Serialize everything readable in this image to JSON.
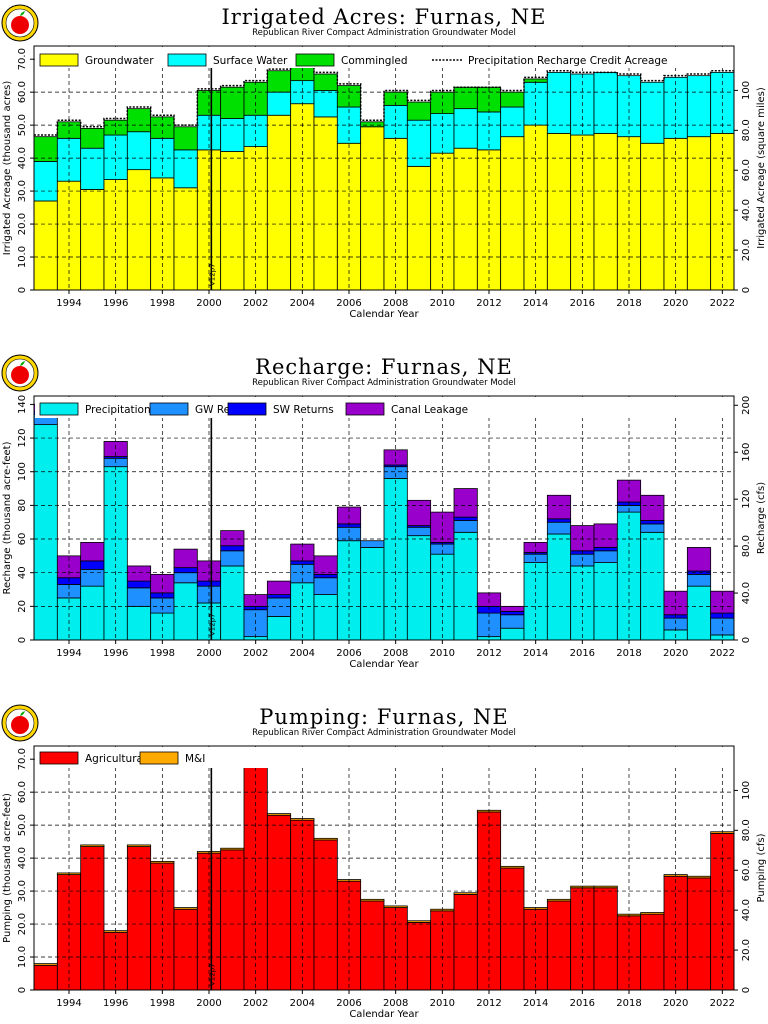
{
  "chart_data": [
    {
      "type": "stacked-bar",
      "title": "Irrigated Acres: Furnas, NE",
      "subtitle": "Republican River Compact Administration Groundwater Model",
      "xlabel": "Calendar Year",
      "ylabel": "Irrigated Acreage (thousand acres)",
      "y2label": "Irrigated Acreage (square miles)",
      "ylim": [
        0,
        74
      ],
      "yticks": [
        "0",
        "10.0",
        "20.0",
        "30.0",
        "40.0",
        "50.0",
        "60.0",
        "70.0"
      ],
      "y2ticks": [
        "0",
        "20.0",
        "40.0",
        "60.0",
        "80.0",
        "100"
      ],
      "xtick_labels": [
        "1994",
        "1996",
        "1998",
        "2000",
        "2002",
        "2004",
        "2006",
        "2008",
        "2010",
        "2012",
        "2014",
        "2016",
        "2018",
        "2020",
        "2022"
      ],
      "vline": {
        "x": 2000.6,
        "label": "V12p7"
      },
      "legend_position": "top",
      "grid": true,
      "years": [
        1993,
        1994,
        1995,
        1996,
        1997,
        1998,
        1999,
        2000,
        2001,
        2002,
        2003,
        2004,
        2005,
        2006,
        2007,
        2008,
        2009,
        2010,
        2011,
        2012,
        2013,
        2014,
        2015,
        2016,
        2017,
        2018,
        2019,
        2020,
        2021,
        2022
      ],
      "series": [
        {
          "name": "Groundwater",
          "color": "#ffff00",
          "values": [
            27.0,
            33.0,
            30.5,
            33.5,
            36.5,
            34.0,
            31.0,
            42.5,
            42.0,
            43.5,
            53.0,
            56.5,
            52.5,
            44.5,
            49.5,
            46.0,
            37.5,
            41.5,
            43.0,
            42.5,
            46.5,
            50.0,
            47.5,
            47.0,
            47.5,
            46.5,
            44.5,
            46.0,
            46.5,
            47.5
          ]
        },
        {
          "name": "Surface Water",
          "color": "#00ffff",
          "values": [
            12.0,
            13.0,
            12.5,
            13.5,
            11.5,
            12.0,
            11.5,
            10.5,
            10.0,
            9.5,
            7.0,
            7.0,
            8.0,
            11.0,
            0.0,
            10.0,
            14.0,
            12.0,
            12.0,
            11.5,
            9.0,
            13.0,
            18.5,
            18.5,
            18.5,
            18.5,
            18.5,
            18.5,
            18.5,
            18.5
          ]
        },
        {
          "name": "Commingled",
          "color": "#00e000",
          "values": [
            7.5,
            5.0,
            6.0,
            4.5,
            7.0,
            6.5,
            7.0,
            7.5,
            9.5,
            10.0,
            6.5,
            6.5,
            5.0,
            6.5,
            1.5,
            4.0,
            5.5,
            6.5,
            6.5,
            7.5,
            4.5,
            1.0,
            0.0,
            0.0,
            0.0,
            0.0,
            0.0,
            0.0,
            0.0,
            0.0
          ]
        },
        {
          "name": "Precipitation Recharge Credit Acreage",
          "color": "#000000",
          "style": "dotted-line",
          "values": [
            47.0,
            51.5,
            49.5,
            52.0,
            55.5,
            53.0,
            50.0,
            61.0,
            62.0,
            63.5,
            67.0,
            70.5,
            66.0,
            62.5,
            51.5,
            60.5,
            57.5,
            60.5,
            61.5,
            61.5,
            60.5,
            64.5,
            66.5,
            66.0,
            66.0,
            65.5,
            63.5,
            65.0,
            65.5,
            66.5
          ]
        }
      ]
    },
    {
      "type": "stacked-bar",
      "title": "Recharge: Furnas, NE",
      "subtitle": "Republican River Compact Administration Groundwater Model",
      "xlabel": "Calendar Year",
      "ylabel": "Recharge (thousand acre-feet)",
      "y2label": "Recharge (cfs)",
      "ylim": [
        0,
        145
      ],
      "yticks": [
        "0",
        "20",
        "40",
        "60",
        "80",
        "100",
        "120",
        "140"
      ],
      "y2ticks": [
        "0",
        "40.0",
        "80.0",
        "120",
        "160",
        "200"
      ],
      "xtick_labels": [
        "1994",
        "1996",
        "1998",
        "2000",
        "2002",
        "2004",
        "2006",
        "2008",
        "2010",
        "2012",
        "2014",
        "2016",
        "2018",
        "2020",
        "2022"
      ],
      "vline": {
        "x": 2000.6,
        "label": "V12p7"
      },
      "legend_position": "top",
      "grid": true,
      "years": [
        1993,
        1994,
        1995,
        1996,
        1997,
        1998,
        1999,
        2000,
        2001,
        2002,
        2003,
        2004,
        2005,
        2006,
        2007,
        2008,
        2009,
        2010,
        2011,
        2012,
        2013,
        2014,
        2015,
        2016,
        2017,
        2018,
        2019,
        2020,
        2021,
        2022
      ],
      "series": [
        {
          "name": "Precipitation",
          "color": "#00eeee",
          "values": [
            128.0,
            25.0,
            32.0,
            103.0,
            20.0,
            16.0,
            34.0,
            22.0,
            44.0,
            2.0,
            14.0,
            34.0,
            27.0,
            59.0,
            55.0,
            96.0,
            62.0,
            51.0,
            64.0,
            2.0,
            7.0,
            46.0,
            63.0,
            44.0,
            46.0,
            76.0,
            64.0,
            6.0,
            32.0,
            3.0
          ]
        },
        {
          "name": "GW Returns",
          "color": "#1e90ff",
          "values": [
            6.0,
            8.0,
            10.0,
            5.0,
            11.0,
            9.0,
            6.0,
            10.0,
            9.0,
            16.0,
            11.0,
            11.0,
            10.0,
            8.0,
            4.0,
            7.0,
            5.0,
            6.0,
            7.0,
            14.0,
            8.0,
            5.0,
            7.0,
            7.0,
            7.0,
            4.0,
            5.0,
            7.0,
            7.0,
            10.0
          ]
        },
        {
          "name": "SW Returns",
          "color": "#0000ff",
          "values": [
            2.0,
            4.0,
            5.0,
            1.0,
            4.0,
            3.0,
            3.0,
            3.0,
            3.0,
            2.0,
            2.0,
            2.0,
            2.0,
            2.0,
            0.0,
            1.0,
            1.0,
            1.0,
            2.0,
            4.0,
            2.0,
            1.0,
            2.0,
            2.0,
            2.0,
            2.0,
            2.0,
            2.0,
            2.0,
            3.0
          ]
        },
        {
          "name": "Canal Leakage",
          "color": "#9900cc",
          "values": [
            4.0,
            13.0,
            11.0,
            9.0,
            9.0,
            11.0,
            11.0,
            12.0,
            9.0,
            7.0,
            8.0,
            10.0,
            11.0,
            10.0,
            0.0,
            9.0,
            15.0,
            18.0,
            17.0,
            8.0,
            3.0,
            6.0,
            14.0,
            15.0,
            14.0,
            13.0,
            15.0,
            14.0,
            14.0,
            13.0
          ]
        }
      ]
    },
    {
      "type": "stacked-bar",
      "title": "Pumping: Furnas, NE",
      "subtitle": "Republican River Compact Administration Groundwater Model",
      "xlabel": "Calendar Year",
      "ylabel": "Pumping (thousand acre-feet)",
      "y2label": "Pumping (cfs)",
      "ylim": [
        0,
        74
      ],
      "yticks": [
        "0",
        "10.0",
        "20.0",
        "30.0",
        "40.0",
        "50.0",
        "60.0",
        "70.0"
      ],
      "y2ticks": [
        "0",
        "20.0",
        "40.0",
        "60.0",
        "80.0",
        "100"
      ],
      "xtick_labels": [
        "1994",
        "1996",
        "1998",
        "2000",
        "2002",
        "2004",
        "2006",
        "2008",
        "2010",
        "2012",
        "2014",
        "2016",
        "2018",
        "2020",
        "2022"
      ],
      "vline": {
        "x": 2000.6,
        "label": "V12p7"
      },
      "legend_position": "top",
      "grid": true,
      "years": [
        1993,
        1994,
        1995,
        1996,
        1997,
        1998,
        1999,
        2000,
        2001,
        2002,
        2003,
        2004,
        2005,
        2006,
        2007,
        2008,
        2009,
        2010,
        2011,
        2012,
        2013,
        2014,
        2015,
        2016,
        2017,
        2018,
        2019,
        2020,
        2021,
        2022
      ],
      "series": [
        {
          "name": "Agricultural",
          "color": "#ff0000",
          "values": [
            7.5,
            35.0,
            43.5,
            17.5,
            43.5,
            38.5,
            24.5,
            41.5,
            42.5,
            70.0,
            53.0,
            51.5,
            45.5,
            33.0,
            27.0,
            25.0,
            20.5,
            24.0,
            29.0,
            54.0,
            37.0,
            24.5,
            27.0,
            31.0,
            31.0,
            22.5,
            23.0,
            34.5,
            34.0,
            47.5
          ]
        },
        {
          "name": "M&I",
          "color": "#ffaa00",
          "values": [
            0.5,
            0.5,
            0.5,
            0.5,
            0.5,
            0.5,
            0.5,
            0.5,
            0.5,
            0.5,
            0.5,
            0.5,
            0.5,
            0.5,
            0.5,
            0.5,
            0.5,
            0.5,
            0.5,
            0.5,
            0.5,
            0.5,
            0.5,
            0.5,
            0.5,
            0.5,
            0.5,
            0.5,
            0.5,
            0.5
          ]
        }
      ]
    }
  ]
}
